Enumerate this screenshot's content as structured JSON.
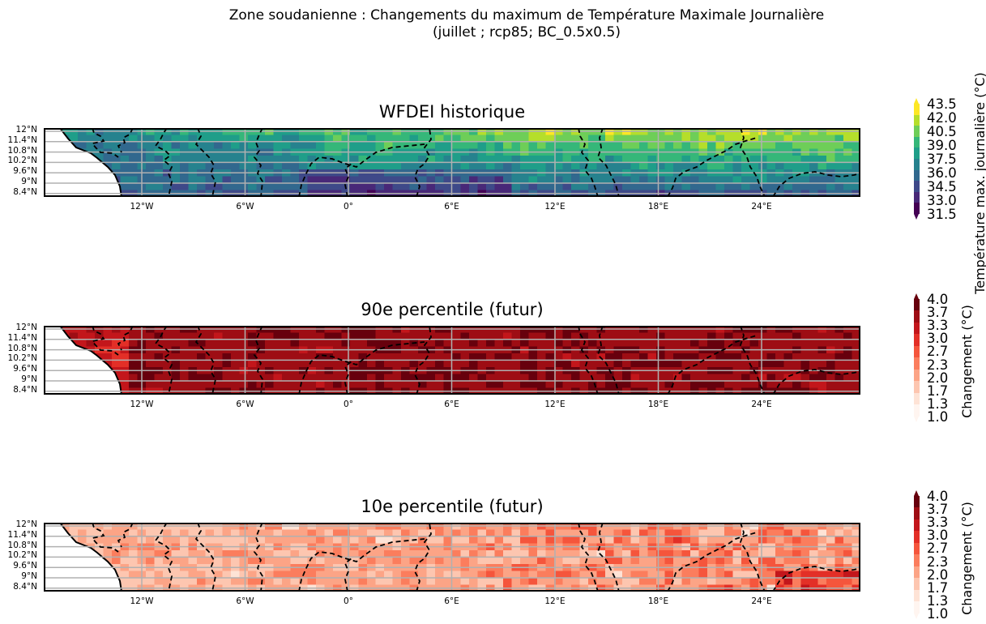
{
  "title": {
    "line1": "Zone soudanienne : Changements du maximum de Température Maximale Journalière",
    "line2": "(juillet ; rcp85; BC_0.5x0.5)"
  },
  "colors": {
    "land": "#ffffff",
    "grid": "#b0b0b0",
    "border": "#000000"
  },
  "chart_data": [
    {
      "type": "heatmap",
      "title": "WFDEI historique",
      "xlabel": "",
      "ylabel": "",
      "x_ticks": [
        "12°W",
        "6°W",
        "0°",
        "6°E",
        "12°E",
        "18°E",
        "24°E"
      ],
      "y_ticks": [
        "12°N",
        "11.4°N",
        "10.8°N",
        "10.2°N",
        "9.6°N",
        "9°N",
        "8.4°N"
      ],
      "lon_range": [
        -17.5,
        30
      ],
      "lat_range": [
        8.25,
        12.25
      ],
      "grid": true,
      "colormap": "viridis",
      "colorbar": {
        "label": "Température max. journalière (°C)",
        "ticks": [
          "43.5",
          "42.0",
          "40.5",
          "39.0",
          "37.5",
          "36.0",
          "34.5",
          "33.0",
          "31.5"
        ],
        "range": [
          31.5,
          43.5
        ],
        "colors": [
          "#fde725",
          "#b5de2b",
          "#6ece58",
          "#35b779",
          "#1f9e89",
          "#26828e",
          "#31688e",
          "#3e4989",
          "#482878",
          "#440154"
        ]
      }
    },
    {
      "type": "heatmap",
      "title": "90e percentile (futur)",
      "xlabel": "",
      "ylabel": "",
      "x_ticks": [
        "12°W",
        "6°W",
        "0°",
        "6°E",
        "12°E",
        "18°E",
        "24°E"
      ],
      "y_ticks": [
        "12°N",
        "11.4°N",
        "10.8°N",
        "10.2°N",
        "9.6°N",
        "9°N",
        "8.4°N"
      ],
      "lon_range": [
        -17.5,
        30
      ],
      "lat_range": [
        8.25,
        12.25
      ],
      "grid": true,
      "colormap": "Reds",
      "colorbar": {
        "label": "Changement (°C)",
        "ticks": [
          "4.0",
          "3.7",
          "3.3",
          "3.0",
          "2.7",
          "2.3",
          "2.0",
          "1.7",
          "1.3",
          "1.0"
        ],
        "range": [
          1.0,
          4.0
        ],
        "colors": [
          "#67000d",
          "#9e0d14",
          "#c3161b",
          "#e32f27",
          "#f5553c",
          "#fb7d5d",
          "#fca486",
          "#fdc6b0",
          "#fee3d6",
          "#fff5f0"
        ]
      }
    },
    {
      "type": "heatmap",
      "title": "10e percentile (futur)",
      "xlabel": "",
      "ylabel": "",
      "x_ticks": [
        "12°W",
        "6°W",
        "0°",
        "6°E",
        "12°E",
        "18°E",
        "24°E"
      ],
      "y_ticks": [
        "12°N",
        "11.4°N",
        "10.8°N",
        "10.2°N",
        "9.6°N",
        "9°N",
        "8.4°N"
      ],
      "lon_range": [
        -17.5,
        30
      ],
      "lat_range": [
        8.25,
        12.25
      ],
      "grid": true,
      "colormap": "Reds",
      "colorbar": {
        "label": "Changement (°C)",
        "ticks": [
          "4.0",
          "3.7",
          "3.3",
          "3.0",
          "2.7",
          "2.3",
          "2.0",
          "1.7",
          "1.3",
          "1.0"
        ],
        "range": [
          1.0,
          4.0
        ],
        "colors": [
          "#67000d",
          "#9e0d14",
          "#c3161b",
          "#e32f27",
          "#f5553c",
          "#fb7d5d",
          "#fca486",
          "#fdc6b0",
          "#fee3d6",
          "#fff5f0"
        ]
      }
    }
  ]
}
